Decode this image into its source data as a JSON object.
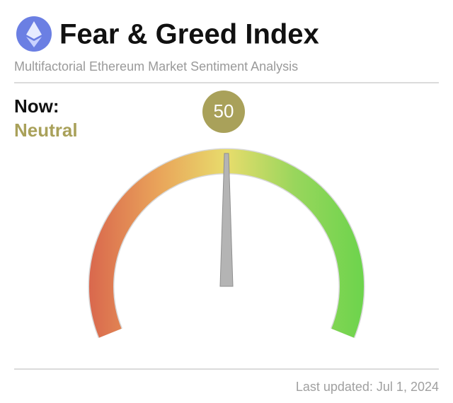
{
  "chart_data": {
    "type": "gauge",
    "title": "Fear & Greed Index",
    "subtitle": "Multifactorial Ethereum Market Sentiment Analysis",
    "now_label": "Now:",
    "sentiment": "Neutral",
    "value": 50,
    "ylim": [
      0,
      100
    ],
    "colors": [
      "#d9674d",
      "#e9a35a",
      "#e8dc6c",
      "#98d65c",
      "#6cd44c"
    ],
    "needle_color": "#b4b4b4",
    "value_color": "#a9a15a",
    "footer": "Last updated: Jul 1, 2024"
  }
}
